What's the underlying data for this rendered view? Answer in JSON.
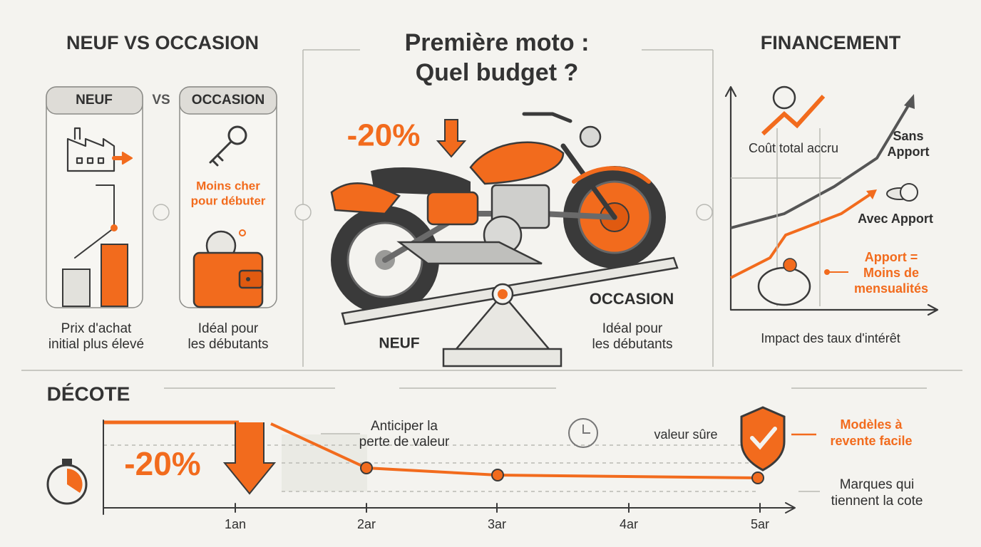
{
  "left_panel": {
    "title": "NEUF VS OCCASION",
    "neuf": "NEUF",
    "vs": "VS",
    "occasion": "OCCASION",
    "occasion_note": [
      "Moins cher",
      "pour débuter"
    ],
    "neuf_caption": [
      "Prix d'achat",
      "initial plus élevé"
    ],
    "occasion_caption": [
      "Idéal pour",
      "les débutants"
    ]
  },
  "center_panel": {
    "title": [
      "Première moto :",
      "Quel budget ?"
    ],
    "discount": "-20%",
    "occasion": "OCCASION",
    "neuf": "NEUF",
    "caption": [
      "Idéal pour",
      "les débutants"
    ]
  },
  "right_panel": {
    "title": "FINANCEMENT",
    "cost_label": "Coût total accru",
    "sans_apport": [
      "Sans",
      "Apport"
    ],
    "avec_apport": "Avec Apport",
    "apport_note": [
      "Apport =",
      "Moins de",
      "mensualités"
    ],
    "caption": "Impact des taux d'intérêt"
  },
  "decote": {
    "title": "DÉCOTE",
    "discount": "-20%",
    "anticipate": [
      "Anticiper la",
      "perte de valeur"
    ],
    "safe_value": "valeur sûre",
    "resale": [
      "Modèles à",
      "revente facile"
    ],
    "brands": [
      "Marques qui",
      "tiennent la cote"
    ],
    "axis_labels": [
      "1an",
      "2ar",
      "3ar",
      "4ar",
      "5ar"
    ]
  }
}
